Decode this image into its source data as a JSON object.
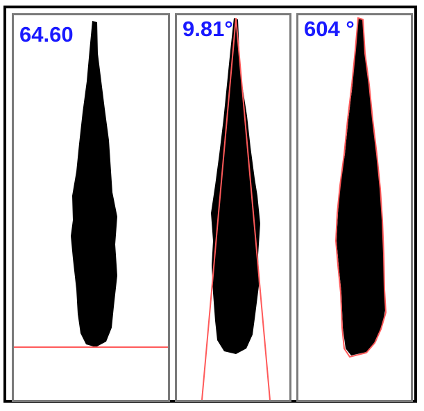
{
  "panels": [
    {
      "value_label": "64.60",
      "overlay": "baseline"
    },
    {
      "value_label": "9.81°",
      "overlay": "cone"
    },
    {
      "value_label": "604 °",
      "overlay": "contour"
    }
  ],
  "colors": {
    "frame": "#000000",
    "panel_border": "#7a7a7a",
    "label_text": "#1a1aff",
    "silhouette": "#000000",
    "overlay_line": "#ff5a5a"
  }
}
